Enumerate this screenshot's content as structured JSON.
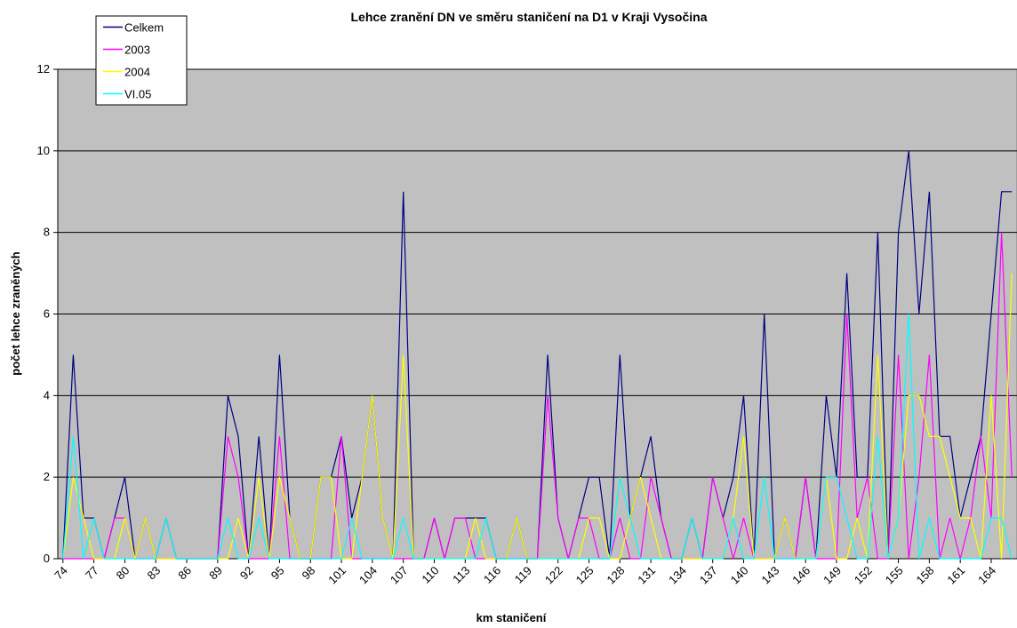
{
  "chart_data": {
    "type": "line",
    "title": "Lehce zranění DN ve směru staničení na D1 v Kraji Vysočina",
    "x_label": "km staničení",
    "y_label": "počet lehce zraněných",
    "categories": [
      74,
      null,
      null,
      77,
      null,
      null,
      80,
      null,
      null,
      83,
      null,
      null,
      86,
      null,
      null,
      89,
      null,
      null,
      92,
      null,
      null,
      95,
      null,
      null,
      98,
      null,
      null,
      101,
      null,
      null,
      104,
      null,
      null,
      107,
      null,
      null,
      110,
      null,
      null,
      113,
      null,
      null,
      116,
      null,
      null,
      119,
      null,
      null,
      122,
      null,
      null,
      125,
      null,
      null,
      128,
      null,
      null,
      131,
      null,
      null,
      134,
      null,
      null,
      137,
      null,
      null,
      140,
      null,
      null,
      143,
      null,
      null,
      146,
      null,
      null,
      149,
      null,
      null,
      152,
      null,
      null,
      155,
      null,
      null,
      158,
      null,
      null,
      161,
      null,
      null,
      164,
      null,
      null
    ],
    "series": [
      {
        "name": "Celkem",
        "color": "#000080",
        "values": [
          0,
          5,
          1,
          1,
          0,
          1,
          2,
          0,
          1,
          0,
          1,
          0,
          0,
          0,
          0,
          0,
          4,
          3,
          0,
          3,
          0,
          5,
          1,
          0,
          0,
          2,
          2,
          3,
          1,
          2,
          4,
          1,
          0,
          9,
          0,
          0,
          1,
          0,
          1,
          1,
          1,
          1,
          0,
          0,
          1,
          0,
          0,
          5,
          1,
          0,
          1,
          2,
          2,
          0,
          5,
          1,
          2,
          3,
          1,
          0,
          0,
          1,
          0,
          2,
          1,
          2,
          4,
          0,
          6,
          0,
          1,
          0,
          2,
          0,
          4,
          2,
          7,
          2,
          2,
          8,
          0,
          8,
          10,
          6,
          9,
          3,
          3,
          1,
          2,
          3,
          6,
          9,
          9
        ]
      },
      {
        "name": "2003",
        "color": "#ff00ff",
        "values": [
          0,
          0,
          0,
          0,
          0,
          1,
          1,
          0,
          0,
          0,
          0,
          0,
          0,
          0,
          0,
          0,
          3,
          2,
          0,
          0,
          0,
          3,
          0,
          0,
          0,
          0,
          0,
          3,
          0,
          0,
          0,
          0,
          0,
          0,
          0,
          0,
          1,
          0,
          1,
          1,
          0,
          0,
          0,
          0,
          0,
          0,
          0,
          4,
          1,
          0,
          1,
          1,
          0,
          0,
          1,
          0,
          0,
          2,
          1,
          0,
          0,
          0,
          0,
          2,
          1,
          0,
          1,
          0,
          0,
          0,
          0,
          0,
          2,
          0,
          0,
          0,
          6,
          1,
          2,
          0,
          0,
          5,
          0,
          2,
          5,
          0,
          1,
          0,
          1,
          3,
          1,
          8,
          2
        ]
      },
      {
        "name": "2004",
        "color": "#ffff00",
        "values": [
          0,
          2,
          1,
          0,
          0,
          0,
          1,
          0,
          1,
          0,
          0,
          0,
          0,
          0,
          0,
          0,
          0,
          1,
          0,
          2,
          0,
          2,
          1,
          0,
          0,
          2,
          2,
          0,
          0,
          2,
          4,
          1,
          0,
          5,
          0,
          0,
          0,
          0,
          0,
          0,
          1,
          0,
          0,
          0,
          1,
          0,
          0,
          0,
          0,
          0,
          0,
          1,
          1,
          0,
          0,
          1,
          2,
          1,
          0,
          0,
          0,
          0,
          0,
          0,
          0,
          1,
          3,
          0,
          0,
          0,
          1,
          0,
          0,
          0,
          2,
          0,
          0,
          1,
          0,
          5,
          0,
          1,
          4,
          4,
          3,
          3,
          2,
          1,
          1,
          0,
          4,
          0,
          7
        ]
      },
      {
        "name": "VI.05",
        "color": "#00ffff",
        "values": [
          0,
          3,
          0,
          1,
          0,
          0,
          0,
          0,
          0,
          0,
          1,
          0,
          0,
          0,
          0,
          0,
          1,
          0,
          0,
          1,
          0,
          0,
          0,
          0,
          0,
          0,
          0,
          0,
          1,
          0,
          0,
          0,
          0,
          1,
          0,
          0,
          0,
          0,
          0,
          0,
          0,
          1,
          0,
          0,
          0,
          0,
          0,
          0,
          0,
          0,
          0,
          0,
          0,
          0,
          2,
          1,
          0,
          0,
          0,
          0,
          0,
          1,
          0,
          0,
          0,
          1,
          0,
          0,
          2,
          0,
          0,
          0,
          0,
          0,
          2,
          2,
          1,
          0,
          0,
          3,
          0,
          1,
          6,
          0,
          1,
          0,
          0,
          0,
          0,
          0,
          1,
          1,
          0
        ]
      }
    ],
    "ylim": [
      0,
      12
    ],
    "yticks": [
      0,
      2,
      4,
      6,
      8,
      10,
      12
    ],
    "grid": true,
    "plot_background": "#c0c0c0",
    "legend": "upper left"
  }
}
